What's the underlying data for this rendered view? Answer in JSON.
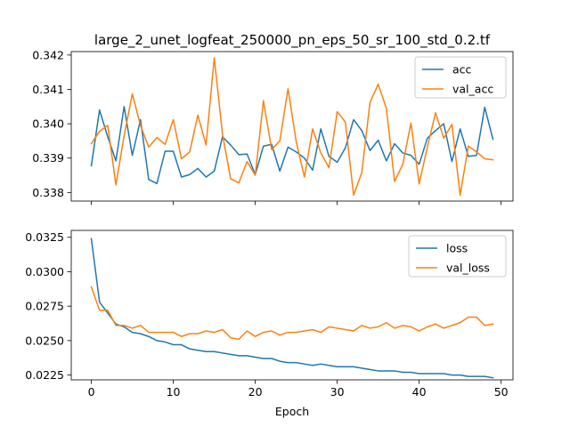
{
  "chart_data": [
    {
      "type": "line",
      "title": "large_2_unet_logfeat_250000_pn_eps_50_sr_100_std_0.2.tf",
      "xlabel": "",
      "ylabel": "",
      "xlim": [
        -2.45,
        51.45
      ],
      "ylim": [
        0.33775,
        0.3421
      ],
      "xticks": [
        0,
        10,
        20,
        30,
        40,
        50
      ],
      "xtick_labels_visible": false,
      "yticks": [
        0.338,
        0.339,
        0.34,
        0.341,
        0.342
      ],
      "ytick_labels": [
        "0.338",
        "0.339",
        "0.340",
        "0.341",
        "0.342"
      ],
      "legend": {
        "position": "top-right"
      },
      "x": [
        0,
        1,
        2,
        3,
        4,
        5,
        6,
        7,
        8,
        9,
        10,
        11,
        12,
        13,
        14,
        15,
        16,
        17,
        18,
        19,
        20,
        21,
        22,
        23,
        24,
        25,
        26,
        27,
        28,
        29,
        30,
        31,
        32,
        33,
        34,
        35,
        36,
        37,
        38,
        39,
        40,
        41,
        42,
        43,
        44,
        45,
        46,
        47,
        48,
        49
      ],
      "series": [
        {
          "name": "acc",
          "color": "#1f77b4",
          "values": [
            0.33878,
            0.3404,
            0.33962,
            0.33892,
            0.3405,
            0.33908,
            0.34012,
            0.33838,
            0.33826,
            0.3392,
            0.3392,
            0.33845,
            0.33852,
            0.3387,
            0.33845,
            0.33862,
            0.33962,
            0.33938,
            0.3391,
            0.33912,
            0.33852,
            0.33935,
            0.3394,
            0.33862,
            0.33932,
            0.33918,
            0.339,
            0.33865,
            0.33985,
            0.33905,
            0.33888,
            0.3393,
            0.34012,
            0.3398,
            0.33922,
            0.33952,
            0.33892,
            0.33942,
            0.33915,
            0.33908,
            0.33882,
            0.33958,
            0.3398,
            0.34,
            0.3389,
            0.33985,
            0.33905,
            0.33908,
            0.34048,
            0.33955
          ]
        },
        {
          "name": "val_acc",
          "color": "#ff7f0e",
          "values": [
            0.33942,
            0.33978,
            0.33995,
            0.33822,
            0.33965,
            0.34087,
            0.33995,
            0.33932,
            0.3396,
            0.3394,
            0.34012,
            0.33898,
            0.33918,
            0.34025,
            0.33938,
            0.34192,
            0.3397,
            0.3384,
            0.33828,
            0.3389,
            0.3385,
            0.34067,
            0.33925,
            0.3395,
            0.34102,
            0.33948,
            0.33845,
            0.33985,
            0.33915,
            0.33872,
            0.34035,
            0.34005,
            0.33792,
            0.33858,
            0.34062,
            0.34115,
            0.34045,
            0.33832,
            0.33882,
            0.34002,
            0.33825,
            0.33932,
            0.34032,
            0.33958,
            0.33998,
            0.33792,
            0.33935,
            0.33918,
            0.33898,
            0.33895
          ]
        }
      ]
    },
    {
      "type": "line",
      "title": "",
      "xlabel": "Epoch",
      "ylabel": "",
      "xlim": [
        -2.45,
        51.45
      ],
      "ylim": [
        0.02215,
        0.033
      ],
      "xticks": [
        0,
        10,
        20,
        30,
        40,
        50
      ],
      "xtick_labels": [
        "0",
        "10",
        "20",
        "30",
        "40",
        "50"
      ],
      "yticks": [
        0.0225,
        0.025,
        0.0275,
        0.03,
        0.0325
      ],
      "ytick_labels": [
        "0.0225",
        "0.0250",
        "0.0275",
        "0.0300",
        "0.0325"
      ],
      "legend": {
        "position": "top-right"
      },
      "x": [
        0,
        1,
        2,
        3,
        4,
        5,
        6,
        7,
        8,
        9,
        10,
        11,
        12,
        13,
        14,
        15,
        16,
        17,
        18,
        19,
        20,
        21,
        22,
        23,
        24,
        25,
        26,
        27,
        28,
        29,
        30,
        31,
        32,
        33,
        34,
        35,
        36,
        37,
        38,
        39,
        40,
        41,
        42,
        43,
        44,
        45,
        46,
        47,
        48,
        49
      ],
      "series": [
        {
          "name": "loss",
          "color": "#1f77b4",
          "values": [
            0.0324,
            0.0278,
            0.027,
            0.0262,
            0.026,
            0.0256,
            0.0255,
            0.0253,
            0.025,
            0.0249,
            0.0247,
            0.0247,
            0.0244,
            0.0243,
            0.0242,
            0.0242,
            0.0241,
            0.024,
            0.0239,
            0.0239,
            0.0238,
            0.0237,
            0.0237,
            0.0235,
            0.0234,
            0.0234,
            0.0233,
            0.0232,
            0.0233,
            0.0232,
            0.0231,
            0.0231,
            0.0231,
            0.023,
            0.0229,
            0.0228,
            0.0228,
            0.0228,
            0.0227,
            0.0227,
            0.0226,
            0.0226,
            0.0226,
            0.0226,
            0.0225,
            0.0225,
            0.0224,
            0.0224,
            0.0224,
            0.0223
          ]
        },
        {
          "name": "val_loss",
          "color": "#ff7f0e",
          "values": [
            0.0289,
            0.0272,
            0.0272,
            0.0261,
            0.0261,
            0.0259,
            0.0261,
            0.0256,
            0.0256,
            0.0256,
            0.0256,
            0.0253,
            0.0255,
            0.0255,
            0.0257,
            0.0256,
            0.0258,
            0.0252,
            0.0251,
            0.0257,
            0.0253,
            0.0256,
            0.0257,
            0.0254,
            0.0256,
            0.0256,
            0.0257,
            0.0258,
            0.0256,
            0.026,
            0.0259,
            0.0258,
            0.0257,
            0.0261,
            0.0259,
            0.026,
            0.0263,
            0.0259,
            0.0261,
            0.026,
            0.0257,
            0.026,
            0.0262,
            0.0259,
            0.0261,
            0.0263,
            0.0267,
            0.0267,
            0.0261,
            0.0262
          ]
        }
      ]
    }
  ]
}
